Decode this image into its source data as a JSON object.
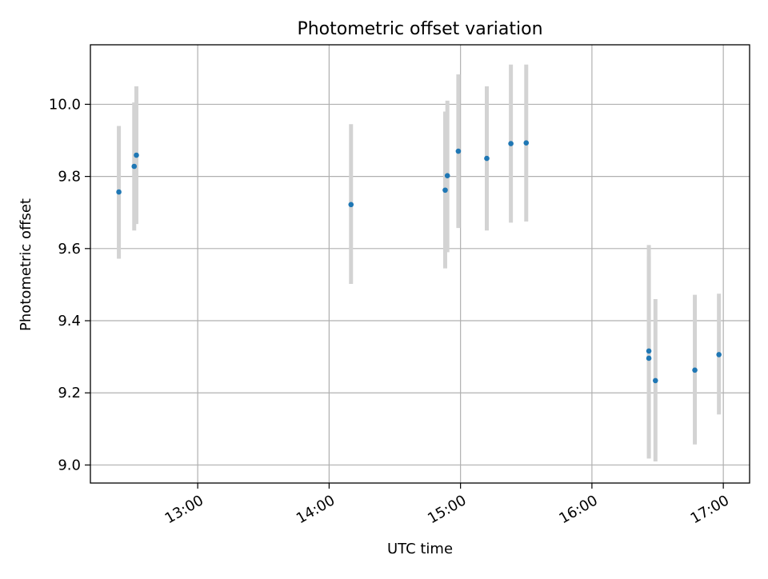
{
  "chart_data": {
    "type": "scatter",
    "title": "Photometric offset variation",
    "xlabel": "UTC time",
    "ylabel": "Photometric offset",
    "x_is_time": true,
    "xlim": [
      "12:11",
      "17:12"
    ],
    "ylim": [
      8.95,
      10.165
    ],
    "xticks": [
      "13:00",
      "14:00",
      "15:00",
      "16:00",
      "17:00"
    ],
    "yticks": [
      "9.0",
      "9.2",
      "9.4",
      "9.6",
      "9.8",
      "10.0"
    ],
    "grid": true,
    "series": [
      {
        "marker_color": "#1f77b4",
        "errorbar_color": "#d3d3d3",
        "points": [
          {
            "x": "12:24",
            "y": 9.757,
            "ylow": 9.572,
            "yhigh": 9.94
          },
          {
            "x": "12:31",
            "y": 9.828,
            "ylow": 9.65,
            "yhigh": 10.005
          },
          {
            "x": "12:32",
            "y": 9.859,
            "ylow": 9.668,
            "yhigh": 10.05
          },
          {
            "x": "14:10",
            "y": 9.722,
            "ylow": 9.502,
            "yhigh": 9.945
          },
          {
            "x": "14:53",
            "y": 9.762,
            "ylow": 9.545,
            "yhigh": 9.98
          },
          {
            "x": "14:54",
            "y": 9.802,
            "ylow": 9.59,
            "yhigh": 10.01
          },
          {
            "x": "14:59",
            "y": 9.87,
            "ylow": 9.657,
            "yhigh": 10.083
          },
          {
            "x": "15:12",
            "y": 9.85,
            "ylow": 9.65,
            "yhigh": 10.05
          },
          {
            "x": "15:23",
            "y": 9.891,
            "ylow": 9.672,
            "yhigh": 10.11
          },
          {
            "x": "15:30",
            "y": 9.893,
            "ylow": 9.675,
            "yhigh": 10.11
          },
          {
            "x": "16:26",
            "y": 9.296,
            "ylow": 9.018,
            "yhigh": 9.578
          },
          {
            "x": "16:26",
            "y": 9.316,
            "ylow": 9.02,
            "yhigh": 9.61
          },
          {
            "x": "16:29",
            "y": 9.234,
            "ylow": 9.01,
            "yhigh": 9.46
          },
          {
            "x": "16:47",
            "y": 9.263,
            "ylow": 9.057,
            "yhigh": 9.472
          },
          {
            "x": "16:58",
            "y": 9.306,
            "ylow": 9.14,
            "yhigh": 9.475
          }
        ]
      }
    ]
  }
}
